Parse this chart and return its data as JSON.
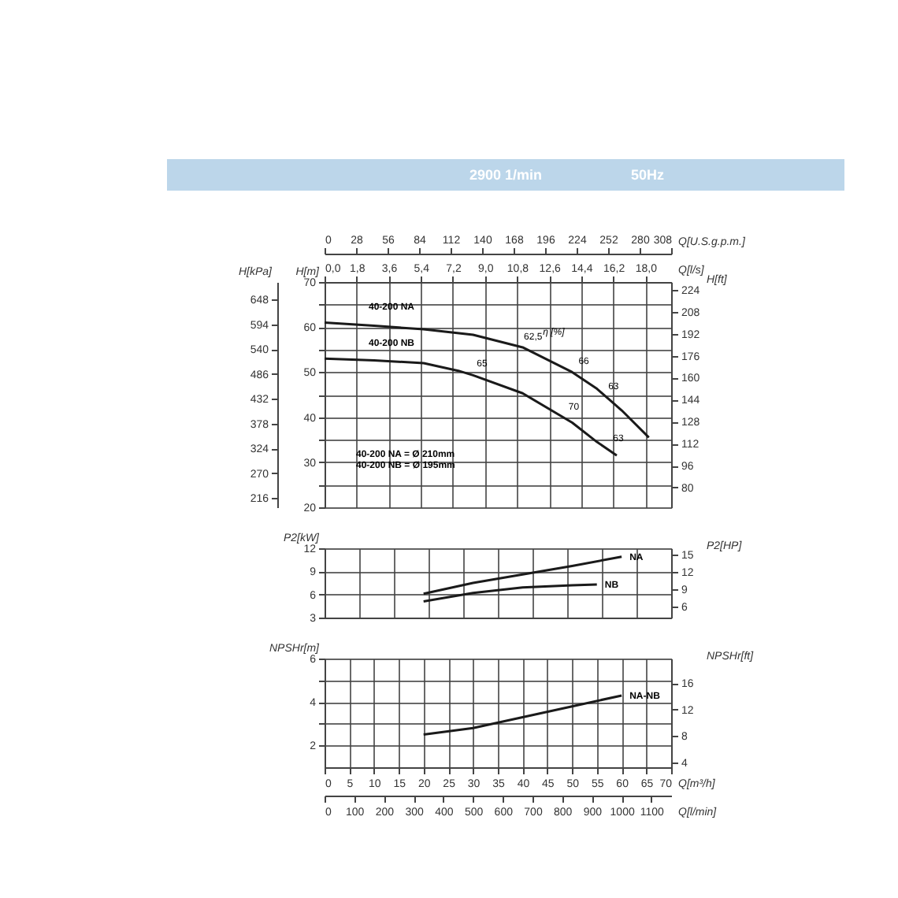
{
  "chart_data": [
    {
      "type": "line",
      "title": "2900 1/min",
      "subtitle": "50Hz",
      "ylabel": "H[m]",
      "y2label": "H[kPa]",
      "y3label": "H[ft]",
      "xlabel": "Q[l/s]",
      "x2label": "Q[U.S.g.p.m.]",
      "grid": true,
      "legend": false,
      "xlim": [
        0,
        19.44
      ],
      "xticks": [
        {
          "value": 0,
          "label": "0,0"
        },
        {
          "value": 1.8,
          "label": "1,8"
        },
        {
          "value": 3.6,
          "label": "3,6"
        },
        {
          "value": 5.4,
          "label": "5,4"
        },
        {
          "value": 7.2,
          "label": "7,2"
        },
        {
          "value": 9,
          "label": "9,0"
        },
        {
          "value": 10.8,
          "label": "10,8"
        },
        {
          "value": 12.6,
          "label": "12,6"
        },
        {
          "value": 14.4,
          "label": "14,4"
        },
        {
          "value": 16.2,
          "label": "16,2"
        },
        {
          "value": 18,
          "label": "18,0"
        }
      ],
      "ylim": [
        20,
        70
      ],
      "yticks": [
        20,
        {
          "value": 25,
          "label": null
        },
        30,
        {
          "value": 35,
          "label": null
        },
        40,
        {
          "value": 45,
          "label": null
        },
        50,
        {
          "value": 55,
          "label": null
        },
        60,
        {
          "value": 65,
          "label": null
        },
        70
      ],
      "y2lim": [
        196.1,
        686.5
      ],
      "y2ticks": [
        216,
        270,
        324,
        378,
        432,
        486,
        540,
        594,
        648
      ],
      "y3lim": [
        65.6,
        229.7
      ],
      "y3ticks": [
        80,
        96,
        112,
        128,
        144,
        160,
        176,
        192,
        208,
        224
      ],
      "x2lim": [
        0,
        308
      ],
      "x2ticks": [
        0,
        28,
        56,
        84,
        112,
        140,
        168,
        196,
        224,
        252,
        280,
        308
      ],
      "series": [
        {
          "name": "40-200 NA",
          "color": "#1a1a1a",
          "x": [
            0,
            2.78,
            5.56,
            8.33,
            11.11,
            13.89,
            15.28,
            16.67,
            18.19
          ],
          "values": [
            61,
            60.3,
            59.5,
            58.3,
            55.5,
            50,
            46.3,
            41.5,
            35.5
          ]
        },
        {
          "name": "40-200 NB",
          "color": "#1a1a1a",
          "x": [
            0,
            2.78,
            5.56,
            7.5,
            8.33,
            11.11,
            13.89,
            15.28,
            16.39
          ],
          "values": [
            53,
            52.6,
            52,
            50.3,
            49.3,
            45.3,
            38.8,
            34.5,
            31.5
          ]
        }
      ],
      "annotations": [
        "η [%]",
        {
          "text": "62,5",
          "x": 10.83,
          "y": 55.5
        },
        {
          "text": "66",
          "x": 13.89,
          "y": 50
        },
        {
          "text": "63",
          "x": 15.56,
          "y": 44.5
        },
        {
          "text": "65",
          "x": 8.19,
          "y": 49.5
        },
        {
          "text": "70",
          "x": 13.33,
          "y": 40
        },
        {
          "text": "63",
          "x": 15.83,
          "y": 33
        },
        "40-200 NA = Ø 210mm",
        "40-200 NB = Ø 195mm"
      ]
    },
    {
      "type": "line",
      "ylabel": "P2[kW]",
      "y2label": "P2[HP]",
      "grid": true,
      "legend": false,
      "tick_labels": "y",
      "xlim": [
        0,
        70
      ],
      "xticks": [
        {
          "value": 0,
          "label": null
        },
        {
          "value": 7,
          "label": null
        },
        {
          "value": 14,
          "label": null
        },
        {
          "value": 21,
          "label": null
        },
        {
          "value": 28,
          "label": null
        },
        {
          "value": 35,
          "label": null
        },
        {
          "value": 42,
          "label": null
        },
        {
          "value": 49,
          "label": null
        },
        {
          "value": 56,
          "label": null
        },
        {
          "value": 63,
          "label": null
        },
        {
          "value": 70,
          "label": null
        }
      ],
      "ylim": [
        3,
        12
      ],
      "yticks": [
        3,
        6,
        9,
        12
      ],
      "y2lim": [
        4.02,
        16.09
      ],
      "y2ticks": [
        6,
        9,
        12,
        15
      ],
      "series": [
        {
          "name": "NA",
          "color": "#1a1a1a",
          "x": [
            20,
            30,
            40,
            50,
            60
          ],
          "values": [
            6.1,
            7.5,
            8.6,
            9.7,
            10.9
          ]
        },
        {
          "name": "NB",
          "color": "#1a1a1a",
          "x": [
            20,
            30,
            40,
            50,
            55
          ],
          "values": [
            5.1,
            6.2,
            6.9,
            7.2,
            7.3
          ]
        }
      ]
    },
    {
      "type": "line",
      "ylabel": "NPSHr[m]",
      "y2label": "NPSHr[ft]",
      "xlabel": "Q[m³/h]",
      "x2label": "Q[l/min]",
      "grid": true,
      "legend": false,
      "xlim": [
        0,
        70
      ],
      "xticks": [
        0,
        5,
        10,
        15,
        20,
        25,
        30,
        35,
        40,
        45,
        50,
        55,
        60,
        65,
        70
      ],
      "ylim": [
        1,
        6
      ],
      "yticks": [
        2,
        {
          "value": 3,
          "label": null
        },
        4,
        {
          "value": 5,
          "label": null
        },
        6
      ],
      "y2lim": [
        3.28,
        19.69
      ],
      "y2ticks": [
        4,
        8,
        12,
        16
      ],
      "x2lim": [
        0,
        1166.7
      ],
      "x2ticks": [
        0,
        100,
        200,
        300,
        400,
        500,
        600,
        700,
        800,
        900,
        1000,
        1100
      ],
      "series": [
        {
          "name": "NA-NB",
          "color": "#1a1a1a",
          "x": [
            20,
            30,
            40,
            50,
            60
          ],
          "values": [
            2.5,
            2.8,
            3.3,
            3.8,
            4.3
          ]
        }
      ]
    }
  ]
}
